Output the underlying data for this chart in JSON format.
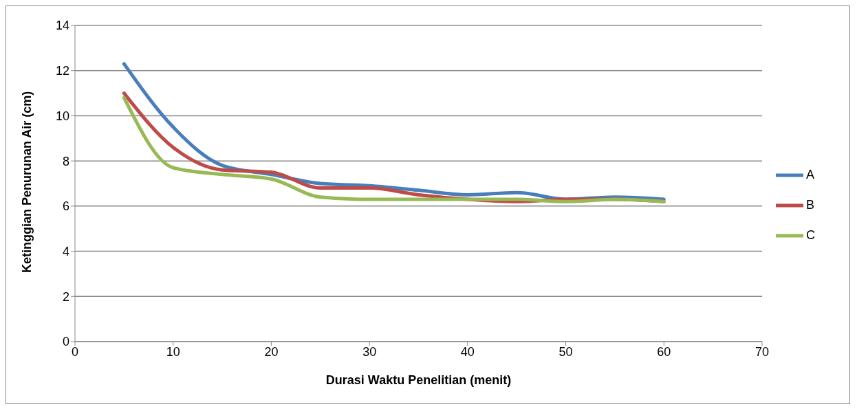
{
  "chart_data": {
    "type": "line",
    "xlabel": "Durasi Waktu Penelitian (menit)",
    "ylabel": "Ketinggian Penurunan Air (cm)",
    "x": [
      5,
      10,
      15,
      20,
      25,
      30,
      35,
      40,
      45,
      50,
      55,
      60
    ],
    "series": [
      {
        "name": "A",
        "color": "#4a7ebb",
        "values": [
          12.3,
          9.5,
          7.8,
          7.4,
          7.0,
          6.9,
          6.7,
          6.5,
          6.6,
          6.3,
          6.4,
          6.3
        ]
      },
      {
        "name": "B",
        "color": "#be4b48",
        "values": [
          11.0,
          8.6,
          7.6,
          7.5,
          6.8,
          6.8,
          6.5,
          6.3,
          6.2,
          6.3,
          6.3,
          6.2
        ]
      },
      {
        "name": "C",
        "color": "#98b954",
        "values": [
          10.8,
          7.7,
          7.4,
          7.2,
          6.4,
          6.3,
          6.3,
          6.3,
          6.3,
          6.2,
          6.3,
          6.2
        ]
      }
    ],
    "xlim": [
      0,
      70
    ],
    "xticks": [
      0,
      10,
      20,
      30,
      40,
      50,
      60,
      70
    ],
    "ylim": [
      0,
      14
    ],
    "yticks": [
      0,
      2,
      4,
      6,
      8,
      10,
      12,
      14
    ],
    "grid": "y",
    "legend": "right",
    "marker": "none",
    "line_style": "solid"
  }
}
